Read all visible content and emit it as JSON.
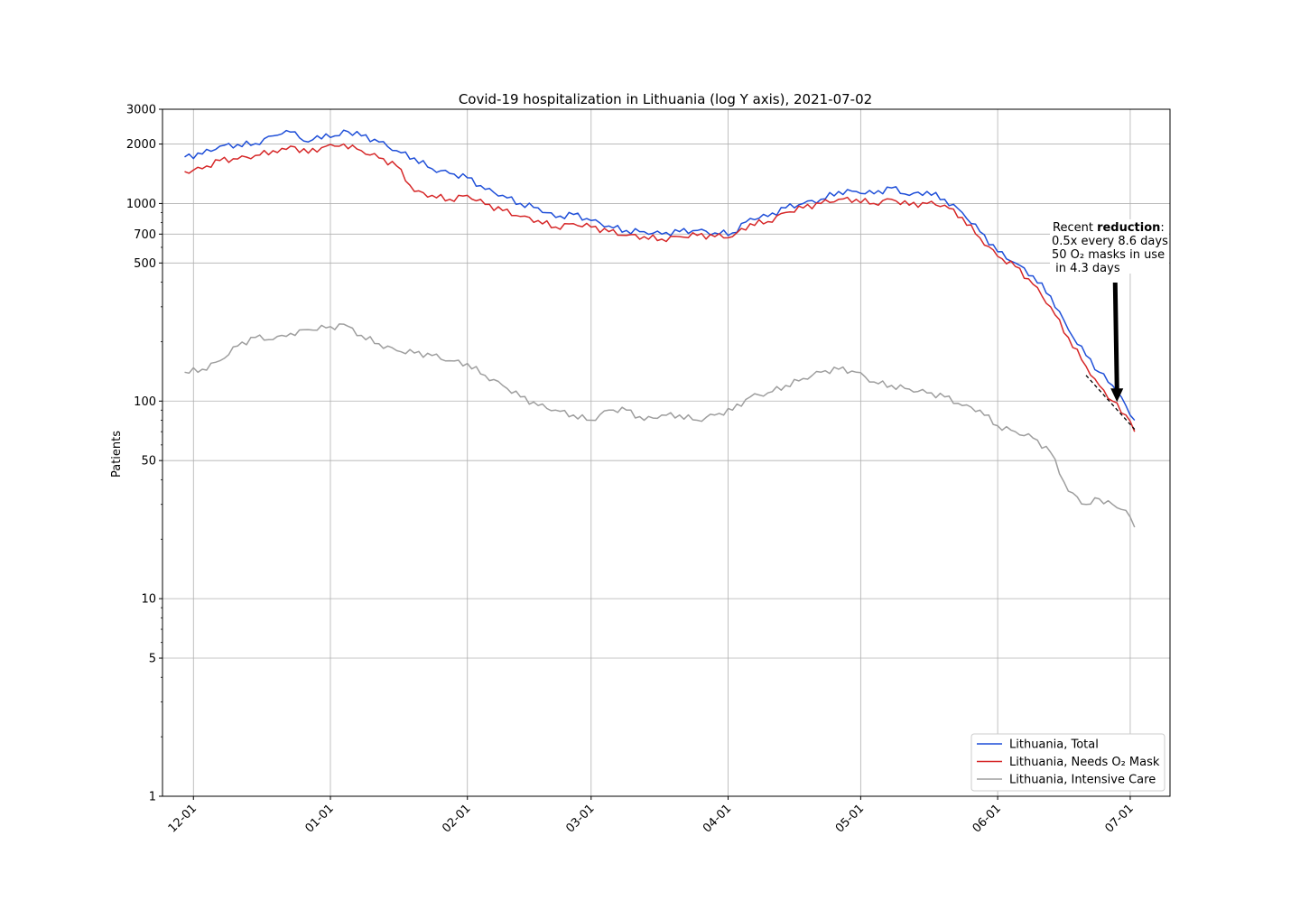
{
  "chart_data": {
    "type": "line",
    "title": "Covid-19 hospitalization in Lithuania (log Y axis), 2021-07-02",
    "xlabel": "",
    "ylabel": "Patients",
    "y_scale": "log",
    "ylim": [
      1,
      3000
    ],
    "xlim": [
      "2020-11-24",
      "2021-07-10"
    ],
    "yticks": [
      {
        "value": 1,
        "label": "1"
      },
      {
        "value": 5,
        "label": "5"
      },
      {
        "value": 10,
        "label": "10"
      },
      {
        "value": 50,
        "label": "50"
      },
      {
        "value": 100,
        "label": "100"
      },
      {
        "value": 500,
        "label": "500"
      },
      {
        "value": 700,
        "label": "700"
      },
      {
        "value": 1000,
        "label": "1000"
      },
      {
        "value": 2000,
        "label": "2000"
      },
      {
        "value": 3000,
        "label": "3000"
      }
    ],
    "xticks": [
      {
        "date": "2020-12-01",
        "label": "12-01"
      },
      {
        "date": "2021-01-01",
        "label": "01-01"
      },
      {
        "date": "2021-02-01",
        "label": "02-01"
      },
      {
        "date": "2021-03-01",
        "label": "03-01"
      },
      {
        "date": "2021-04-01",
        "label": "04-01"
      },
      {
        "date": "2021-05-01",
        "label": "05-01"
      },
      {
        "date": "2021-06-01",
        "label": "06-01"
      },
      {
        "date": "2021-07-01",
        "label": "07-01"
      }
    ],
    "grid": true,
    "legend_position": "lower-right",
    "series": [
      {
        "name": "Lithuania, Total",
        "color": "#1f4fd8",
        "x": [
          "2020-11-29",
          "2020-12-03",
          "2020-12-07",
          "2020-12-11",
          "2020-12-15",
          "2020-12-19",
          "2020-12-21",
          "2020-12-23",
          "2020-12-27",
          "2020-12-31",
          "2021-01-02",
          "2021-01-04",
          "2021-01-08",
          "2021-01-12",
          "2021-01-16",
          "2021-01-20",
          "2021-01-24",
          "2021-01-28",
          "2021-02-01",
          "2021-02-05",
          "2021-02-09",
          "2021-02-13",
          "2021-02-17",
          "2021-02-21",
          "2021-02-25",
          "2021-03-01",
          "2021-03-05",
          "2021-03-09",
          "2021-03-13",
          "2021-03-17",
          "2021-03-21",
          "2021-03-25",
          "2021-03-29",
          "2021-04-02",
          "2021-04-06",
          "2021-04-10",
          "2021-04-14",
          "2021-04-18",
          "2021-04-22",
          "2021-04-26",
          "2021-04-30",
          "2021-05-04",
          "2021-05-08",
          "2021-05-12",
          "2021-05-16",
          "2021-05-20",
          "2021-05-24",
          "2021-05-28",
          "2021-06-01",
          "2021-06-05",
          "2021-06-09",
          "2021-06-13",
          "2021-06-17",
          "2021-06-21",
          "2021-06-24",
          "2021-06-27",
          "2021-06-30",
          "2021-07-02"
        ],
        "values": [
          1720,
          1780,
          1950,
          1990,
          2010,
          2200,
          2250,
          2300,
          2050,
          2250,
          2200,
          2350,
          2200,
          2050,
          1850,
          1700,
          1500,
          1420,
          1350,
          1180,
          1100,
          1000,
          950,
          850,
          880,
          820,
          770,
          730,
          720,
          700,
          720,
          730,
          710,
          710,
          840,
          860,
          950,
          1000,
          1050,
          1150,
          1150,
          1120,
          1200,
          1100,
          1150,
          1050,
          900,
          720,
          570,
          500,
          430,
          340,
          230,
          170,
          140,
          120,
          95,
          80
        ]
      },
      {
        "name": "Lithuania, Needs O₂ Mask",
        "color": "#d62728",
        "x": [
          "2020-11-29",
          "2020-12-03",
          "2020-12-07",
          "2020-12-11",
          "2020-12-15",
          "2020-12-19",
          "2020-12-21",
          "2020-12-23",
          "2020-12-27",
          "2020-12-31",
          "2021-01-02",
          "2021-01-04",
          "2021-01-08",
          "2021-01-12",
          "2021-01-16",
          "2021-01-20",
          "2021-01-24",
          "2021-01-28",
          "2021-02-01",
          "2021-02-05",
          "2021-02-09",
          "2021-02-13",
          "2021-02-17",
          "2021-02-21",
          "2021-02-25",
          "2021-03-01",
          "2021-03-05",
          "2021-03-09",
          "2021-03-13",
          "2021-03-17",
          "2021-03-21",
          "2021-03-25",
          "2021-03-29",
          "2021-04-02",
          "2021-04-06",
          "2021-04-10",
          "2021-04-14",
          "2021-04-18",
          "2021-04-22",
          "2021-04-26",
          "2021-04-30",
          "2021-05-04",
          "2021-05-08",
          "2021-05-12",
          "2021-05-16",
          "2021-05-20",
          "2021-05-24",
          "2021-05-28",
          "2021-06-01",
          "2021-06-05",
          "2021-06-09",
          "2021-06-13",
          "2021-06-17",
          "2021-06-21",
          "2021-06-24",
          "2021-06-27",
          "2021-06-30",
          "2021-07-02"
        ],
        "values": [
          1450,
          1500,
          1650,
          1680,
          1750,
          1850,
          1900,
          1950,
          1800,
          1950,
          1950,
          2000,
          1850,
          1700,
          1550,
          1150,
          1100,
          1050,
          1100,
          990,
          920,
          860,
          820,
          760,
          790,
          760,
          720,
          690,
          680,
          660,
          680,
          690,
          680,
          680,
          790,
          810,
          900,
          950,
          1000,
          1050,
          1050,
          1000,
          1050,
          980,
          1000,
          980,
          850,
          670,
          540,
          480,
          390,
          300,
          210,
          150,
          120,
          100,
          85,
          70
        ]
      },
      {
        "name": "Lithuania, Intensive Care",
        "color": "#9e9e9e",
        "x": [
          "2020-11-29",
          "2020-12-03",
          "2020-12-07",
          "2020-12-11",
          "2020-12-15",
          "2020-12-19",
          "2020-12-21",
          "2020-12-23",
          "2020-12-27",
          "2020-12-31",
          "2021-01-02",
          "2021-01-04",
          "2021-01-08",
          "2021-01-12",
          "2021-01-16",
          "2021-01-20",
          "2021-01-24",
          "2021-01-28",
          "2021-02-01",
          "2021-02-05",
          "2021-02-09",
          "2021-02-13",
          "2021-02-17",
          "2021-02-21",
          "2021-02-25",
          "2021-03-01",
          "2021-03-05",
          "2021-03-09",
          "2021-03-13",
          "2021-03-17",
          "2021-03-21",
          "2021-03-25",
          "2021-03-29",
          "2021-04-02",
          "2021-04-06",
          "2021-04-10",
          "2021-04-14",
          "2021-04-18",
          "2021-04-22",
          "2021-04-26",
          "2021-04-30",
          "2021-05-04",
          "2021-05-08",
          "2021-05-12",
          "2021-05-16",
          "2021-05-20",
          "2021-05-24",
          "2021-05-28",
          "2021-06-01",
          "2021-06-05",
          "2021-06-09",
          "2021-06-13",
          "2021-06-17",
          "2021-06-21",
          "2021-06-24",
          "2021-06-27",
          "2021-06-30",
          "2021-07-02"
        ],
        "values": [
          140,
          145,
          160,
          190,
          210,
          205,
          215,
          220,
          230,
          235,
          230,
          245,
          215,
          195,
          180,
          175,
          170,
          160,
          155,
          135,
          120,
          105,
          95,
          90,
          85,
          80,
          90,
          90,
          80,
          85,
          85,
          80,
          85,
          90,
          105,
          110,
          120,
          130,
          140,
          145,
          140,
          125,
          120,
          115,
          110,
          105,
          95,
          90,
          75,
          70,
          65,
          55,
          35,
          30,
          32,
          30,
          28,
          23
        ]
      }
    ],
    "annotation": {
      "line1_prefix": "Recent ",
      "line1_bold": "reduction",
      "line1_suffix": ":",
      "line2": "0.5x every 8.6 days",
      "line3": "50 O₂ masks in use",
      "line4": " in 4.3 days",
      "trend_x": [
        "2021-06-21",
        "2021-07-02"
      ],
      "trend_y": [
        135,
        72
      ],
      "arrow_target": {
        "x": "2021-06-28",
        "y": 100
      }
    }
  }
}
